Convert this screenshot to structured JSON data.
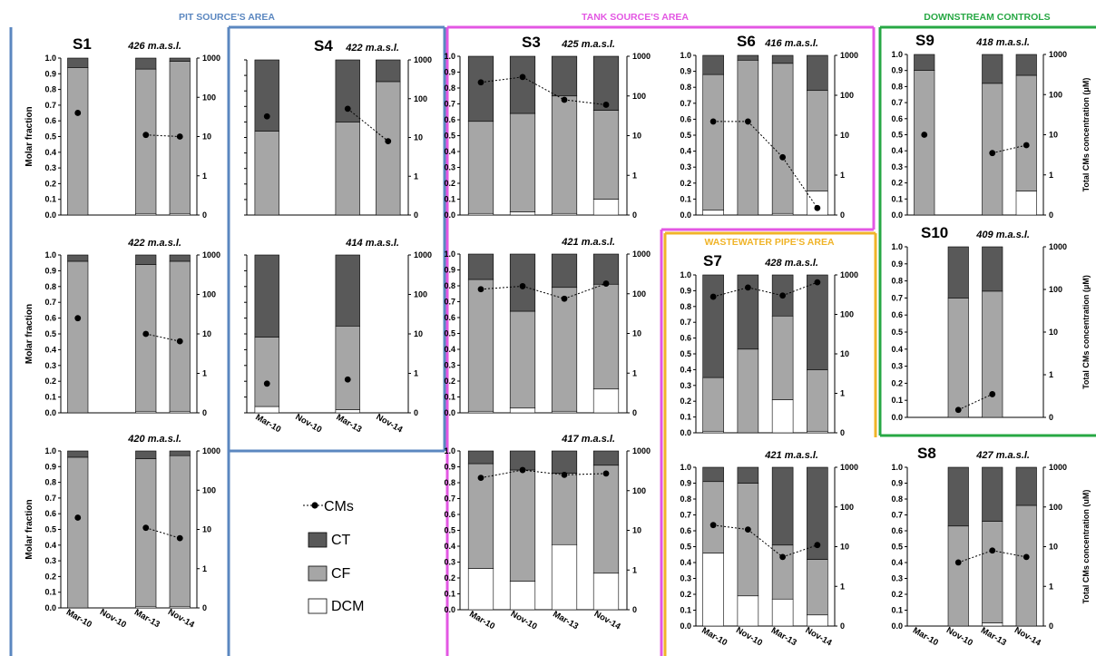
{
  "areas": [
    {
      "name": "PIT SOURCE'S AREA",
      "color": "#5b87c0"
    },
    {
      "name": "TANK SOURCE'S AREA",
      "color": "#e357e3"
    },
    {
      "name": "DOWNSTREAM CONTROLS",
      "color": "#27a844"
    },
    {
      "name": "WASTEWATER PIPE'S AREA",
      "color": "#f0b429"
    }
  ],
  "colors": {
    "DCM": "#ffffff",
    "CF": "#a6a6a6",
    "CT": "#595959"
  },
  "legend": [
    {
      "key": "CMs",
      "label": "CMs",
      "marker": "line-dot"
    },
    {
      "key": "CT",
      "label": "CT",
      "marker": "box"
    },
    {
      "key": "CF",
      "label": "CF",
      "marker": "box"
    },
    {
      "key": "DCM",
      "label": "DCM",
      "marker": "box"
    }
  ],
  "axis_titles": {
    "left": "Molar fraction",
    "right": "Total CMs concentration (μM)",
    "right_short": "Total CMs concentration (uM)"
  },
  "chart_data": [
    {
      "id": "s1-426",
      "type": "bar",
      "station": "S1",
      "altitude": "426 m.a.s.l.",
      "area": "PIT SOURCE'S AREA",
      "categories": [
        "Mar-10",
        "Nov-10",
        "Mar-13",
        "Nov-14"
      ],
      "ylim": [
        0,
        1.0
      ],
      "y2lim": [
        0.1,
        1000
      ],
      "y2scale": "log",
      "series": [
        {
          "name": "DCM",
          "values": [
            0,
            null,
            0.01,
            0.01
          ]
        },
        {
          "name": "CF",
          "values": [
            0.94,
            null,
            0.92,
            0.97
          ]
        },
        {
          "name": "CT",
          "values": [
            0.06,
            null,
            0.07,
            0.02
          ]
        }
      ],
      "line": {
        "name": "CMs",
        "values": [
          40,
          null,
          11,
          10
        ]
      }
    },
    {
      "id": "s1-422",
      "type": "bar",
      "station": "",
      "altitude": "422 m.a.s.l.",
      "area": "PIT SOURCE'S AREA",
      "categories": [
        "Mar-10",
        "Nov-10",
        "Mar-13",
        "Nov-14"
      ],
      "ylim": [
        0,
        1.0
      ],
      "y2lim": [
        0.1,
        1000
      ],
      "y2scale": "log",
      "series": [
        {
          "name": "DCM",
          "values": [
            0,
            null,
            0.01,
            0.01
          ]
        },
        {
          "name": "CF",
          "values": [
            0.96,
            null,
            0.93,
            0.95
          ]
        },
        {
          "name": "CT",
          "values": [
            0.04,
            null,
            0.06,
            0.04
          ]
        }
      ],
      "line": {
        "name": "CMs",
        "values": [
          25,
          null,
          10,
          6.5
        ]
      }
    },
    {
      "id": "s1-420",
      "type": "bar",
      "station": "",
      "altitude": "420 m.a.s.l.",
      "area": "PIT SOURCE'S AREA",
      "categories": [
        "Mar-10",
        "Nov-10",
        "Mar-13",
        "Nov-14"
      ],
      "ylim": [
        0,
        1.0
      ],
      "y2lim": [
        0.1,
        1000
      ],
      "y2scale": "log",
      "series": [
        {
          "name": "DCM",
          "values": [
            0,
            null,
            0.01,
            0.01
          ]
        },
        {
          "name": "CF",
          "values": [
            0.96,
            null,
            0.94,
            0.96
          ]
        },
        {
          "name": "CT",
          "values": [
            0.04,
            null,
            0.05,
            0.03
          ]
        }
      ],
      "line": {
        "name": "CMs",
        "values": [
          20,
          null,
          11,
          6
        ]
      }
    },
    {
      "id": "s4-422",
      "type": "bar",
      "station": "S4",
      "altitude": "422 m.a.s.l.",
      "area": "PIT SOURCE'S AREA",
      "categories": [
        "Mar-10",
        "Nov-10",
        "Mar-13",
        "Nov-14"
      ],
      "ylim": [
        0,
        1.0
      ],
      "y2lim": [
        0.1,
        1000
      ],
      "y2scale": "log",
      "series": [
        {
          "name": "DCM",
          "values": [
            0,
            null,
            0,
            0
          ]
        },
        {
          "name": "CF",
          "values": [
            0.54,
            null,
            0.6,
            0.86
          ]
        },
        {
          "name": "CT",
          "values": [
            0.46,
            null,
            0.4,
            0.14
          ]
        }
      ],
      "line": {
        "name": "CMs",
        "values": [
          35,
          null,
          55,
          8
        ]
      }
    },
    {
      "id": "s4-414",
      "type": "bar",
      "station": "",
      "altitude": "414 m.a.s.l.",
      "area": "PIT SOURCE'S AREA",
      "categories": [
        "Mar-10",
        "Nov-10",
        "Mar-13",
        "Nov-14"
      ],
      "ylim": [
        0,
        1.0
      ],
      "y2lim": [
        0.1,
        1000
      ],
      "y2scale": "log",
      "series": [
        {
          "name": "DCM",
          "values": [
            0.04,
            null,
            0.02,
            null
          ]
        },
        {
          "name": "CF",
          "values": [
            0.44,
            null,
            0.53,
            null
          ]
        },
        {
          "name": "CT",
          "values": [
            0.52,
            null,
            0.45,
            null
          ]
        }
      ],
      "line": {
        "name": "CMs",
        "values": [
          0.55,
          null,
          0.7,
          null
        ]
      }
    },
    {
      "id": "s3-425",
      "type": "bar",
      "station": "S3",
      "altitude": "425 m.a.s.l.",
      "area": "TANK SOURCE'S AREA",
      "categories": [
        "Mar-10",
        "Nov-10",
        "Mar-13",
        "Nov-14"
      ],
      "ylim": [
        0,
        1.0
      ],
      "y2lim": [
        0.1,
        1000
      ],
      "y2scale": "log",
      "series": [
        {
          "name": "DCM",
          "values": [
            0.01,
            0.02,
            0.01,
            0.1
          ]
        },
        {
          "name": "CF",
          "values": [
            0.58,
            0.62,
            0.74,
            0.56
          ]
        },
        {
          "name": "CT",
          "values": [
            0.41,
            0.36,
            0.25,
            0.34
          ]
        }
      ],
      "line": {
        "name": "CMs",
        "values": [
          220,
          300,
          80,
          60
        ]
      }
    },
    {
      "id": "s3-421",
      "type": "bar",
      "station": "",
      "altitude": "421 m.a.s.l.",
      "area": "TANK SOURCE'S AREA",
      "categories": [
        "Mar-10",
        "Nov-10",
        "Mar-13",
        "Nov-14"
      ],
      "ylim": [
        0,
        1.0
      ],
      "y2lim": [
        0.1,
        1000
      ],
      "y2scale": "log",
      "series": [
        {
          "name": "DCM",
          "values": [
            0.01,
            0.03,
            0.01,
            0.15
          ]
        },
        {
          "name": "CF",
          "values": [
            0.83,
            0.61,
            0.78,
            0.66
          ]
        },
        {
          "name": "CT",
          "values": [
            0.16,
            0.36,
            0.21,
            0.19
          ]
        }
      ],
      "line": {
        "name": "CMs",
        "values": [
          130,
          155,
          75,
          180
        ]
      }
    },
    {
      "id": "s3-417",
      "type": "bar",
      "station": "",
      "altitude": "417 m.a.s.l.",
      "area": "TANK SOURCE'S AREA",
      "categories": [
        "Mar-10",
        "Nov-10",
        "Mar-13",
        "Nov-14"
      ],
      "ylim": [
        0,
        1.0
      ],
      "y2lim": [
        0.1,
        1000
      ],
      "y2scale": "log",
      "series": [
        {
          "name": "DCM",
          "values": [
            0.26,
            0.18,
            0.41,
            0.23
          ]
        },
        {
          "name": "CF",
          "values": [
            0.66,
            0.7,
            0.45,
            0.68
          ]
        },
        {
          "name": "CT",
          "values": [
            0.08,
            0.12,
            0.14,
            0.09
          ]
        }
      ],
      "line": {
        "name": "CMs",
        "values": [
          210,
          330,
          250,
          270
        ]
      }
    },
    {
      "id": "s6-416",
      "type": "bar",
      "station": "S6",
      "altitude": "416 m.a.s.l.",
      "area": "TANK SOURCE'S AREA",
      "categories": [
        "Mar-10",
        "Nov-10",
        "Mar-13",
        "Nov-14"
      ],
      "ylim": [
        0,
        1.0
      ],
      "y2lim": [
        0.1,
        1000
      ],
      "y2scale": "log",
      "series": [
        {
          "name": "DCM",
          "values": [
            0.03,
            0,
            0.01,
            0.15
          ]
        },
        {
          "name": "CF",
          "values": [
            0.85,
            0.97,
            0.94,
            0.63
          ]
        },
        {
          "name": "CT",
          "values": [
            0.12,
            0.03,
            0.05,
            0.22
          ]
        }
      ],
      "line": {
        "name": "CMs",
        "values": [
          22,
          22,
          2.8,
          0.15
        ]
      }
    },
    {
      "id": "s7-428",
      "type": "bar",
      "station": "S7",
      "altitude": "428 m.a.s.l.",
      "area": "WASTEWATER PIPE'S AREA",
      "categories": [
        "Mar-10",
        "Nov-10",
        "Mar-13",
        "Nov-14"
      ],
      "ylim": [
        0,
        1.0
      ],
      "y2lim": [
        0.1,
        1000
      ],
      "y2scale": "log",
      "series": [
        {
          "name": "DCM",
          "values": [
            0.01,
            0,
            0.21,
            0.01
          ]
        },
        {
          "name": "CF",
          "values": [
            0.34,
            0.53,
            0.53,
            0.39
          ]
        },
        {
          "name": "CT",
          "values": [
            0.65,
            0.47,
            0.26,
            0.6
          ]
        }
      ],
      "line": {
        "name": "CMs",
        "values": [
          280,
          480,
          300,
          650
        ]
      }
    },
    {
      "id": "s7-421",
      "type": "bar",
      "station": "",
      "altitude": "421 m.a.s.l.",
      "area": "WASTEWATER PIPE'S AREA",
      "categories": [
        "Mar-10",
        "Nov-10",
        "Mar-13",
        "Nov-14"
      ],
      "ylim": [
        0,
        1.0
      ],
      "y2lim": [
        0.1,
        1000
      ],
      "y2scale": "log",
      "series": [
        {
          "name": "DCM",
          "values": [
            0.46,
            0.19,
            0.17,
            0.07
          ]
        },
        {
          "name": "CF",
          "values": [
            0.45,
            0.71,
            0.34,
            0.35
          ]
        },
        {
          "name": "CT",
          "values": [
            0.09,
            0.1,
            0.49,
            0.58
          ]
        }
      ],
      "line": {
        "name": "CMs",
        "values": [
          35,
          27,
          5.5,
          11
        ]
      }
    },
    {
      "id": "s9-418",
      "type": "bar",
      "station": "S9",
      "altitude": "418 m.a.s.l.",
      "area": "DOWNSTREAM CONTROLS",
      "categories": [
        "Mar-10",
        "Nov-10",
        "Mar-13",
        "Nov-14"
      ],
      "ylim": [
        0,
        1.0
      ],
      "y2lim": [
        0.1,
        1000
      ],
      "y2scale": "log",
      "series": [
        {
          "name": "DCM",
          "values": [
            0,
            null,
            0,
            0.15
          ]
        },
        {
          "name": "CF",
          "values": [
            0.9,
            null,
            0.82,
            0.72
          ]
        },
        {
          "name": "CT",
          "values": [
            0.1,
            null,
            0.18,
            0.13
          ]
        }
      ],
      "line": {
        "name": "CMs",
        "values": [
          10,
          null,
          3.5,
          5.5
        ]
      }
    },
    {
      "id": "s10-409",
      "type": "bar",
      "station": "S10",
      "altitude": "409 m.a.s.l.",
      "area": "DOWNSTREAM CONTROLS",
      "categories": [
        "Mar-10",
        "Nov-10",
        "Mar-13",
        "Nov-14"
      ],
      "ylim": [
        0,
        1.0
      ],
      "y2lim": [
        0.1,
        1000
      ],
      "y2scale": "log",
      "series": [
        {
          "name": "DCM",
          "values": [
            null,
            0,
            0,
            null
          ]
        },
        {
          "name": "CF",
          "values": [
            null,
            0.7,
            0.74,
            null
          ]
        },
        {
          "name": "CT",
          "values": [
            null,
            0.3,
            0.26,
            null
          ]
        }
      ],
      "line": {
        "name": "CMs",
        "values": [
          null,
          0.15,
          0.35,
          null
        ]
      }
    },
    {
      "id": "s8-427",
      "type": "bar",
      "station": "S8",
      "altitude": "427 m.a.s.l.",
      "area": "",
      "categories": [
        "Mar-10",
        "Nov-10",
        "Mar-13",
        "Nov-14"
      ],
      "ylim": [
        0,
        1.0
      ],
      "y2lim": [
        0.1,
        1000
      ],
      "y2scale": "log",
      "series": [
        {
          "name": "DCM",
          "values": [
            null,
            0,
            0.02,
            0
          ]
        },
        {
          "name": "CF",
          "values": [
            null,
            0.63,
            0.64,
            0.76
          ]
        },
        {
          "name": "CT",
          "values": [
            null,
            0.37,
            0.34,
            0.24
          ]
        }
      ],
      "line": {
        "name": "CMs",
        "values": [
          null,
          4,
          8,
          5.5
        ]
      }
    }
  ]
}
